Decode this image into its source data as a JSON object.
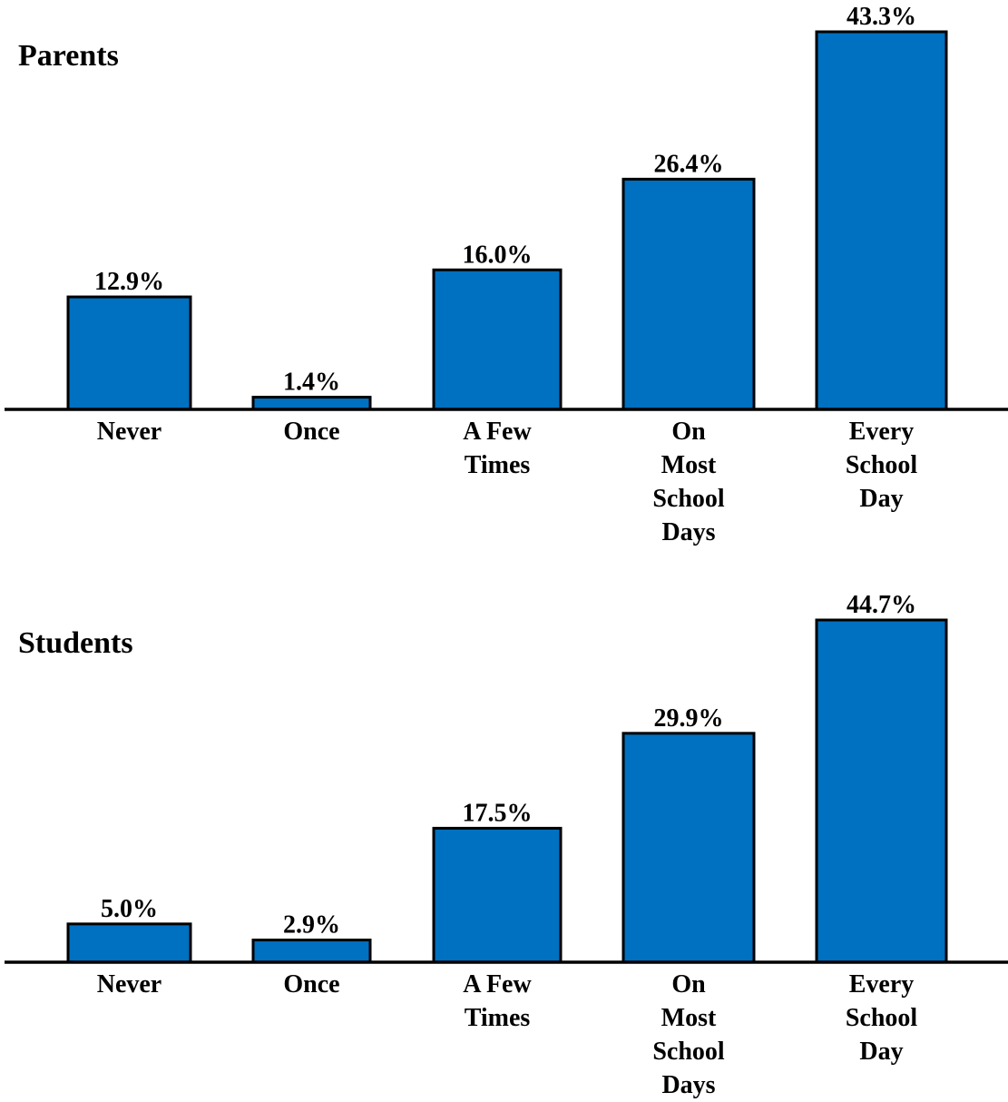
{
  "chart_data": [
    {
      "type": "bar",
      "title": "Parents",
      "categories": [
        [
          "Never"
        ],
        [
          "Once"
        ],
        [
          "A Few",
          "Times"
        ],
        [
          "On",
          "Most",
          "School",
          "Days"
        ],
        [
          "Every",
          "School",
          "Day"
        ]
      ],
      "values": [
        12.9,
        1.4,
        16.0,
        26.4,
        43.3
      ],
      "value_labels": [
        "12.9%",
        "1.4%",
        "16.0%",
        "26.4%",
        "43.3%"
      ],
      "xlabel": "",
      "ylabel": "",
      "ylim": [
        0,
        43.3
      ],
      "grid": false,
      "bar_color": "#0070C0"
    },
    {
      "type": "bar",
      "title": "Students",
      "categories": [
        [
          "Never"
        ],
        [
          "Once"
        ],
        [
          "A Few",
          "Times"
        ],
        [
          "On",
          "Most",
          "School",
          "Days"
        ],
        [
          "Every",
          "School",
          "Day"
        ]
      ],
      "values": [
        5.0,
        2.9,
        17.5,
        29.9,
        44.7
      ],
      "value_labels": [
        "5.0%",
        "2.9%",
        "17.5%",
        "29.9%",
        "44.7%"
      ],
      "xlabel": "",
      "ylabel": "",
      "ylim": [
        0,
        44.7
      ],
      "grid": false,
      "bar_color": "#0070C0"
    }
  ]
}
